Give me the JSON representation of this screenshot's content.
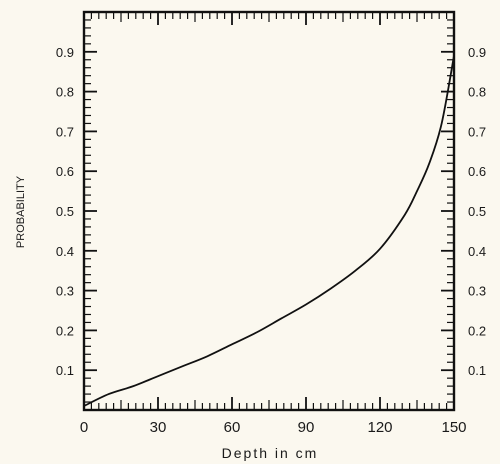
{
  "chart_data": {
    "type": "line",
    "title": "",
    "xlabel": "Depth in cm",
    "ylabel": "PROBABILITY",
    "xlim": [
      0,
      150
    ],
    "ylim": [
      0,
      1.0
    ],
    "x_ticks": [
      "0",
      "30",
      "60",
      "90",
      "120",
      "150"
    ],
    "y_ticks": [
      "0.1",
      "0.2",
      "0.3",
      "0.4",
      "0.5",
      "0.6",
      "0.7",
      "0.8",
      "0.9"
    ],
    "grid": false,
    "series": [
      {
        "name": "",
        "x": [
          0,
          10,
          20,
          30,
          40,
          50,
          60,
          70,
          80,
          90,
          100,
          110,
          120,
          130,
          135,
          140,
          145,
          150
        ],
        "y": [
          0.01,
          0.04,
          0.06,
          0.085,
          0.11,
          0.135,
          0.165,
          0.195,
          0.23,
          0.265,
          0.305,
          0.35,
          0.405,
          0.49,
          0.55,
          0.62,
          0.72,
          0.89
        ]
      }
    ]
  }
}
